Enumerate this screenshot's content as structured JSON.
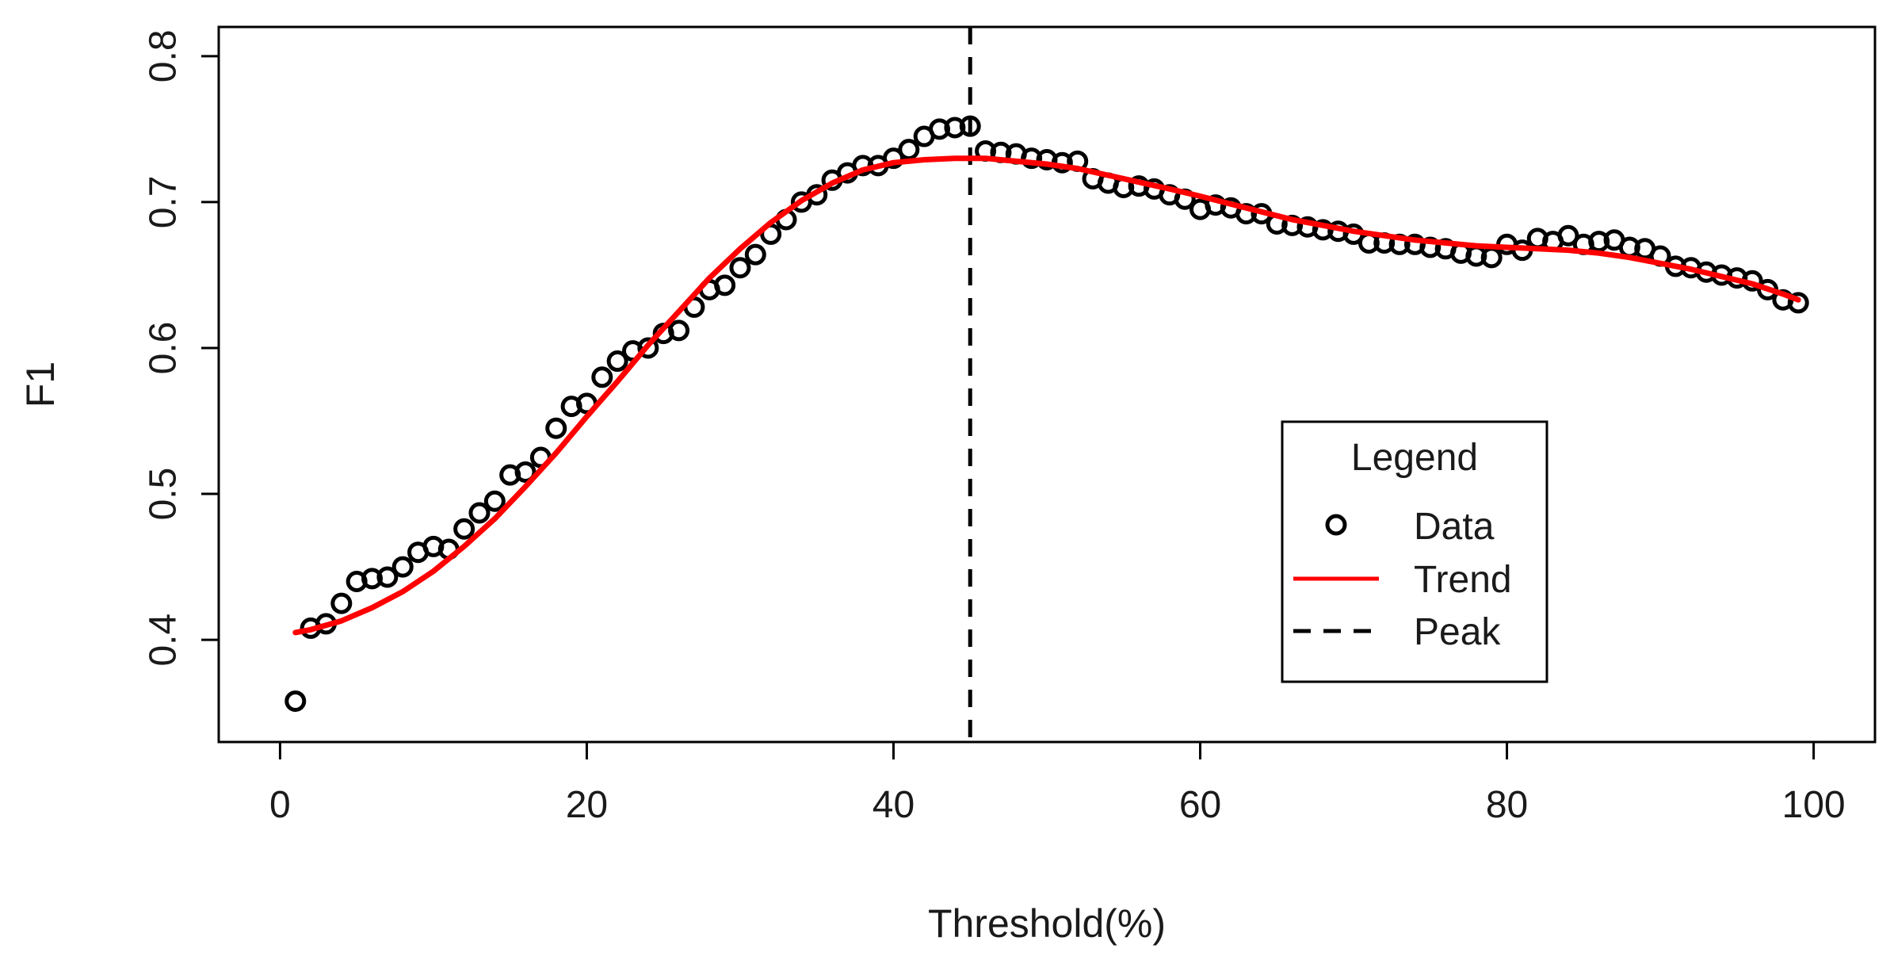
{
  "chart_data": {
    "type": "scatter",
    "title": "",
    "xlabel": "Threshold(%)",
    "ylabel": "F1",
    "xlim": [
      -4,
      104
    ],
    "ylim": [
      0.33,
      0.82
    ],
    "xticks": [
      0,
      20,
      40,
      60,
      80,
      100
    ],
    "yticks": [
      0.4,
      0.5,
      0.6,
      0.7,
      0.8
    ],
    "grid": false,
    "series": [
      {
        "name": "Data",
        "style": "open-circle",
        "color": "#000000",
        "x": [
          1,
          2,
          3,
          4,
          5,
          6,
          7,
          8,
          9,
          10,
          11,
          12,
          13,
          14,
          15,
          16,
          17,
          18,
          19,
          20,
          21,
          22,
          23,
          24,
          25,
          26,
          27,
          28,
          29,
          30,
          31,
          32,
          33,
          34,
          35,
          36,
          37,
          38,
          39,
          40,
          41,
          42,
          43,
          44,
          45,
          46,
          47,
          48,
          49,
          50,
          51,
          52,
          53,
          54,
          55,
          56,
          57,
          58,
          59,
          60,
          61,
          62,
          63,
          64,
          65,
          66,
          67,
          68,
          69,
          70,
          71,
          72,
          73,
          74,
          75,
          76,
          77,
          78,
          79,
          80,
          81,
          82,
          83,
          84,
          85,
          86,
          87,
          88,
          89,
          90,
          91,
          92,
          93,
          94,
          95,
          96,
          97,
          98,
          99
        ],
        "y": [
          0.358,
          0.408,
          0.411,
          0.425,
          0.44,
          0.442,
          0.443,
          0.45,
          0.46,
          0.464,
          0.462,
          0.476,
          0.487,
          0.495,
          0.513,
          0.515,
          0.525,
          0.545,
          0.56,
          0.562,
          0.58,
          0.591,
          0.598,
          0.6,
          0.61,
          0.612,
          0.628,
          0.64,
          0.643,
          0.655,
          0.664,
          0.678,
          0.688,
          0.7,
          0.705,
          0.715,
          0.72,
          0.725,
          0.725,
          0.73,
          0.736,
          0.745,
          0.75,
          0.751,
          0.752,
          0.735,
          0.734,
          0.733,
          0.73,
          0.729,
          0.727,
          0.728,
          0.716,
          0.713,
          0.71,
          0.711,
          0.709,
          0.705,
          0.702,
          0.695,
          0.698,
          0.696,
          0.692,
          0.692,
          0.685,
          0.684,
          0.683,
          0.681,
          0.68,
          0.678,
          0.672,
          0.672,
          0.671,
          0.671,
          0.669,
          0.668,
          0.665,
          0.663,
          0.662,
          0.671,
          0.667,
          0.675,
          0.673,
          0.677,
          0.671,
          0.673,
          0.674,
          0.669,
          0.668,
          0.663,
          0.656,
          0.655,
          0.652,
          0.65,
          0.648,
          0.646,
          0.64,
          0.633,
          0.631
        ]
      },
      {
        "name": "Trend",
        "style": "line",
        "color": "#ff0000",
        "x": [
          1,
          2,
          4,
          6,
          8,
          10,
          12,
          14,
          16,
          18,
          20,
          22,
          24,
          26,
          28,
          30,
          32,
          34,
          36,
          38,
          40,
          42,
          44,
          45,
          46,
          48,
          50,
          52,
          55,
          58,
          60,
          63,
          66,
          70,
          74,
          78,
          80,
          82,
          84,
          86,
          88,
          90,
          92,
          94,
          96,
          98,
          99
        ],
        "y": [
          0.405,
          0.407,
          0.413,
          0.422,
          0.433,
          0.447,
          0.464,
          0.483,
          0.505,
          0.528,
          0.553,
          0.577,
          0.602,
          0.625,
          0.648,
          0.668,
          0.686,
          0.701,
          0.713,
          0.722,
          0.727,
          0.729,
          0.73,
          0.73,
          0.73,
          0.728,
          0.726,
          0.723,
          0.716,
          0.709,
          0.704,
          0.696,
          0.688,
          0.68,
          0.674,
          0.67,
          0.669,
          0.668,
          0.667,
          0.665,
          0.662,
          0.658,
          0.654,
          0.649,
          0.644,
          0.637,
          0.633
        ]
      },
      {
        "name": "Peak",
        "style": "vline-dashed",
        "color": "#000000",
        "x": 45
      }
    ],
    "legend": {
      "title": "Legend",
      "position": "lower-right",
      "entries": [
        "Data",
        "Trend",
        "Peak"
      ]
    }
  }
}
